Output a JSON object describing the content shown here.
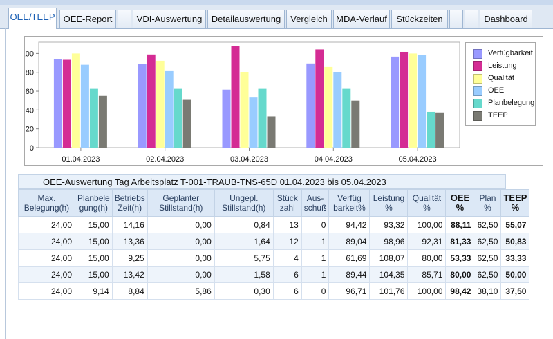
{
  "tabs": [
    {
      "label": "OEE/TEEP",
      "active": true
    },
    {
      "label": "OEE-Report"
    },
    {
      "label": ""
    },
    {
      "label": "VDI-Auswertung"
    },
    {
      "label": "Detailauswertung"
    },
    {
      "label": "Vergleich"
    },
    {
      "label": "MDA-Verlauf"
    },
    {
      "label": "Stückzeiten"
    },
    {
      "label": ""
    },
    {
      "label": ""
    },
    {
      "label": "Dashboard"
    }
  ],
  "chart_data": {
    "type": "bar",
    "categories": [
      "01.04.2023",
      "02.04.2023",
      "03.04.2023",
      "04.04.2023",
      "05.04.2023"
    ],
    "ylim": [
      0,
      112
    ],
    "yticks": [
      "0",
      "20",
      "40",
      "60",
      "80",
      "100"
    ],
    "legend_position": "right",
    "series": [
      {
        "name": "Verfügbarkeit",
        "color": "#9999ff",
        "values": [
          94.42,
          89.04,
          61.69,
          89.44,
          96.71
        ]
      },
      {
        "name": "Leistung",
        "color": "#d42c94",
        "values": [
          93.32,
          98.96,
          108.07,
          104.35,
          101.76
        ]
      },
      {
        "name": "Qualität",
        "color": "#ffff99",
        "values": [
          100.0,
          92.31,
          80.0,
          85.71,
          100.0
        ]
      },
      {
        "name": "OEE",
        "color": "#99ccff",
        "values": [
          88.11,
          81.33,
          53.33,
          80.0,
          98.42
        ]
      },
      {
        "name": "Planbelegung",
        "color": "#66d9cc",
        "values": [
          62.5,
          62.5,
          62.5,
          62.5,
          38.1
        ]
      },
      {
        "name": "TEEP",
        "color": "#7a7a73",
        "values": [
          55.07,
          50.83,
          33.33,
          50.0,
          37.5
        ]
      }
    ]
  },
  "grid": {
    "title": "OEE-Auswertung Tag Arbeitsplatz T-001-TRAUB-TNS-65D 01.04.2023 bis 05.04.2023",
    "headers": [
      {
        "line1": "Max.",
        "line2": "Belegung(h)",
        "bold": false
      },
      {
        "line1": "Planbele",
        "line2": "gung(h)",
        "bold": false
      },
      {
        "line1": "Betriebs",
        "line2": "Zeit(h)",
        "bold": false
      },
      {
        "line1": "Geplanter",
        "line2": "Stillstand(h)",
        "bold": false
      },
      {
        "line1": "Ungepl.",
        "line2": "Stillstand(h)",
        "bold": false
      },
      {
        "line1": "Stück",
        "line2": "zahl",
        "bold": false
      },
      {
        "line1": "Aus-",
        "line2": "schuß",
        "bold": false
      },
      {
        "line1": "Verfüg",
        "line2": "barkeit%",
        "bold": false
      },
      {
        "line1": "Leistung",
        "line2": "%",
        "bold": false
      },
      {
        "line1": "Qualität",
        "line2": "%",
        "bold": false
      },
      {
        "line1": "OEE",
        "line2": "%",
        "bold": true
      },
      {
        "line1": "Plan",
        "line2": "%",
        "bold": false
      },
      {
        "line1": "TEEP",
        "line2": "%",
        "bold": true
      }
    ],
    "rows": [
      [
        "24,00",
        "15,00",
        "14,16",
        "0,00",
        "0,84",
        "13",
        "0",
        "94,42",
        "93,32",
        "100,00",
        "88,11",
        "62,50",
        "55,07"
      ],
      [
        "24,00",
        "15,00",
        "13,36",
        "0,00",
        "1,64",
        "12",
        "1",
        "89,04",
        "98,96",
        "92,31",
        "81,33",
        "62,50",
        "50,83"
      ],
      [
        "24,00",
        "15,00",
        "9,25",
        "0,00",
        "5,75",
        "4",
        "1",
        "61,69",
        "108,07",
        "80,00",
        "53,33",
        "62,50",
        "33,33"
      ],
      [
        "24,00",
        "15,00",
        "13,42",
        "0,00",
        "1,58",
        "6",
        "1",
        "89,44",
        "104,35",
        "85,71",
        "80,00",
        "62,50",
        "50,00"
      ],
      [
        "24,00",
        "9,14",
        "8,84",
        "5,86",
        "0,30",
        "6",
        "0",
        "96,71",
        "101,76",
        "100,00",
        "98,42",
        "38,10",
        "37,50"
      ]
    ]
  }
}
